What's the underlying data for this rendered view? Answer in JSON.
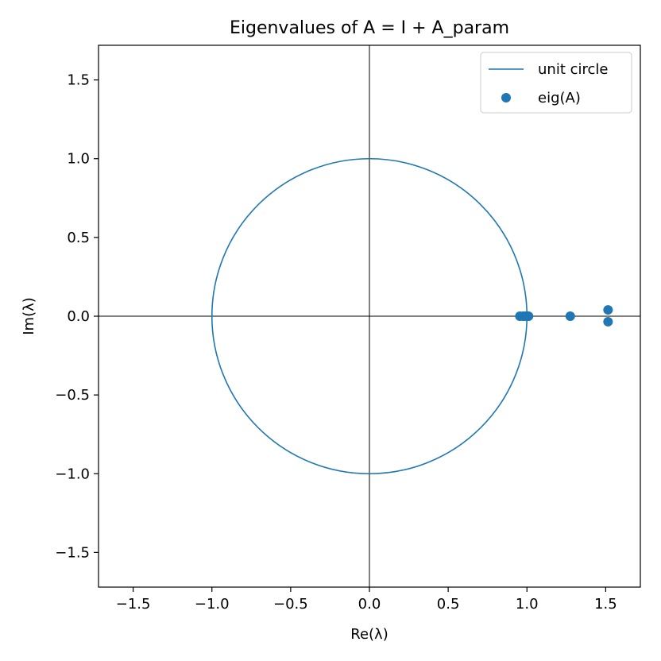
{
  "chart_data": {
    "type": "scatter",
    "title": "Eigenvalues of A = I + A_param",
    "xlabel": "Re(λ)",
    "ylabel": "Im(λ)",
    "xlim": [
      -1.72,
      1.72
    ],
    "ylim": [
      -1.72,
      1.72
    ],
    "xticks": [
      -1.5,
      -1.0,
      -0.5,
      0.0,
      0.5,
      1.0,
      1.5
    ],
    "yticks": [
      -1.5,
      -1.0,
      -0.5,
      0.0,
      0.5,
      1.0,
      1.5
    ],
    "xtick_labels": [
      "−1.5",
      "−1.0",
      "−0.5",
      "0.0",
      "0.5",
      "1.0",
      "1.5"
    ],
    "ytick_labels": [
      "−1.5",
      "−1.0",
      "−0.5",
      "0.0",
      "0.5",
      "1.0",
      "1.5"
    ],
    "grid": false,
    "legend_position": "top-right",
    "color": "#1f77b4",
    "series": [
      {
        "name": "unit circle",
        "kind": "line",
        "shape": "circle",
        "center": [
          0,
          0
        ],
        "radius": 1.0
      },
      {
        "name": "eig(A)",
        "kind": "scatter",
        "points": [
          [
            0.955,
            0.0
          ],
          [
            0.975,
            0.0
          ],
          [
            0.99,
            0.0
          ],
          [
            1.0,
            0.0
          ],
          [
            1.005,
            0.0
          ],
          [
            1.01,
            0.0
          ],
          [
            1.275,
            0.0
          ],
          [
            1.515,
            0.04
          ],
          [
            1.515,
            -0.035
          ]
        ]
      }
    ]
  }
}
